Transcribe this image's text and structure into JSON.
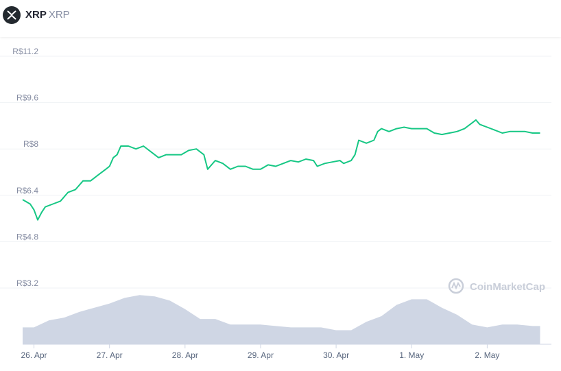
{
  "header": {
    "coin_name": "XRP",
    "coin_symbol": "XRP",
    "logo_icon": "xrp-logo-icon"
  },
  "watermark": {
    "text": "CoinMarketCap",
    "icon": "coinmarketcap-logo-icon"
  },
  "colors": {
    "price_line": "#16c784",
    "volume_fill": "#cfd6e4",
    "grid": "#eff2f5",
    "label": "#858ca2"
  },
  "chart_data": {
    "type": "line",
    "title": "",
    "xlabel": "",
    "ylabel": "",
    "y_ticks": [
      {
        "value": 3.2,
        "label": "R$3.2"
      },
      {
        "value": 4.8,
        "label": "R$4.8"
      },
      {
        "value": 6.4,
        "label": "R$6.4"
      },
      {
        "value": 8,
        "label": "R$8"
      },
      {
        "value": 9.6,
        "label": "R$9.6"
      },
      {
        "value": 11.2,
        "label": "R$11.2"
      }
    ],
    "ylim": [
      3.2,
      11.2
    ],
    "x_ticks": [
      "26. Apr",
      "27. Apr",
      "28. Apr",
      "29. Apr",
      "30. Apr",
      "1. May",
      "2. May"
    ],
    "xlim": [
      -0.15,
      6.85
    ],
    "grid": true,
    "series": [
      {
        "kind": "price",
        "points": [
          [
            -0.15,
            6.25
          ],
          [
            -0.05,
            6.1
          ],
          [
            0.0,
            5.9
          ],
          [
            0.05,
            5.55
          ],
          [
            0.1,
            5.8
          ],
          [
            0.15,
            6.0
          ],
          [
            0.25,
            6.1
          ],
          [
            0.35,
            6.2
          ],
          [
            0.45,
            6.5
          ],
          [
            0.55,
            6.6
          ],
          [
            0.65,
            6.9
          ],
          [
            0.75,
            6.9
          ],
          [
            0.85,
            7.1
          ],
          [
            0.95,
            7.3
          ],
          [
            1.0,
            7.4
          ],
          [
            1.05,
            7.7
          ],
          [
            1.1,
            7.8
          ],
          [
            1.15,
            8.1
          ],
          [
            1.25,
            8.1
          ],
          [
            1.35,
            8.0
          ],
          [
            1.45,
            8.1
          ],
          [
            1.55,
            7.9
          ],
          [
            1.65,
            7.7
          ],
          [
            1.75,
            7.8
          ],
          [
            1.85,
            7.8
          ],
          [
            1.95,
            7.8
          ],
          [
            2.05,
            7.95
          ],
          [
            2.15,
            8.0
          ],
          [
            2.25,
            7.8
          ],
          [
            2.3,
            7.3
          ],
          [
            2.4,
            7.6
          ],
          [
            2.5,
            7.5
          ],
          [
            2.6,
            7.3
          ],
          [
            2.7,
            7.4
          ],
          [
            2.8,
            7.4
          ],
          [
            2.9,
            7.3
          ],
          [
            3.0,
            7.3
          ],
          [
            3.1,
            7.45
          ],
          [
            3.2,
            7.4
          ],
          [
            3.3,
            7.5
          ],
          [
            3.4,
            7.6
          ],
          [
            3.5,
            7.55
          ],
          [
            3.6,
            7.65
          ],
          [
            3.7,
            7.6
          ],
          [
            3.75,
            7.4
          ],
          [
            3.85,
            7.5
          ],
          [
            3.95,
            7.55
          ],
          [
            4.05,
            7.6
          ],
          [
            4.1,
            7.5
          ],
          [
            4.2,
            7.6
          ],
          [
            4.25,
            7.8
          ],
          [
            4.3,
            8.3
          ],
          [
            4.4,
            8.2
          ],
          [
            4.5,
            8.3
          ],
          [
            4.55,
            8.6
          ],
          [
            4.6,
            8.7
          ],
          [
            4.7,
            8.6
          ],
          [
            4.8,
            8.7
          ],
          [
            4.9,
            8.75
          ],
          [
            5.0,
            8.7
          ],
          [
            5.1,
            8.7
          ],
          [
            5.2,
            8.7
          ],
          [
            5.3,
            8.55
          ],
          [
            5.4,
            8.5
          ],
          [
            5.5,
            8.55
          ],
          [
            5.6,
            8.6
          ],
          [
            5.7,
            8.7
          ],
          [
            5.8,
            8.9
          ],
          [
            5.85,
            9.0
          ],
          [
            5.9,
            8.85
          ],
          [
            5.95,
            8.8
          ],
          [
            6.0,
            8.75
          ],
          [
            6.1,
            8.65
          ],
          [
            6.2,
            8.55
          ],
          [
            6.3,
            8.6
          ],
          [
            6.4,
            8.6
          ],
          [
            6.5,
            8.6
          ],
          [
            6.6,
            8.55
          ],
          [
            6.7,
            8.55
          ]
        ]
      },
      {
        "kind": "volume",
        "points": [
          [
            -0.15,
            0.6
          ],
          [
            0.0,
            0.6
          ],
          [
            0.2,
            0.85
          ],
          [
            0.4,
            0.95
          ],
          [
            0.6,
            1.15
          ],
          [
            0.8,
            1.3
          ],
          [
            1.0,
            1.45
          ],
          [
            1.2,
            1.65
          ],
          [
            1.4,
            1.75
          ],
          [
            1.6,
            1.7
          ],
          [
            1.8,
            1.55
          ],
          [
            2.0,
            1.25
          ],
          [
            2.2,
            0.9
          ],
          [
            2.4,
            0.9
          ],
          [
            2.6,
            0.7
          ],
          [
            2.8,
            0.7
          ],
          [
            3.0,
            0.7
          ],
          [
            3.2,
            0.65
          ],
          [
            3.4,
            0.6
          ],
          [
            3.6,
            0.6
          ],
          [
            3.8,
            0.6
          ],
          [
            4.0,
            0.5
          ],
          [
            4.2,
            0.5
          ],
          [
            4.4,
            0.8
          ],
          [
            4.6,
            1.0
          ],
          [
            4.8,
            1.4
          ],
          [
            5.0,
            1.6
          ],
          [
            5.2,
            1.6
          ],
          [
            5.4,
            1.3
          ],
          [
            5.6,
            1.05
          ],
          [
            5.8,
            0.7
          ],
          [
            6.0,
            0.6
          ],
          [
            6.2,
            0.7
          ],
          [
            6.4,
            0.7
          ],
          [
            6.6,
            0.65
          ],
          [
            6.7,
            0.65
          ]
        ]
      }
    ],
    "volume_max": 2.0
  }
}
